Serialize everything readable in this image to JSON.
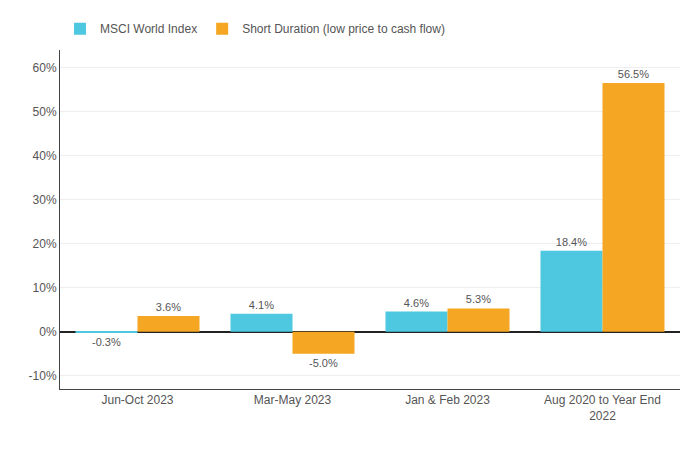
{
  "chart_data": {
    "type": "bar",
    "categories": [
      "Jun-Oct 2023",
      "Mar-May 2023",
      "Jan & Feb 2023",
      "Aug 2020 to Year End\n2022"
    ],
    "series": [
      {
        "name": "MSCI World Index",
        "color": "#4DC8E0",
        "values": [
          -0.3,
          4.1,
          4.6,
          18.4
        ],
        "value_labels": [
          "-0.3%",
          "4.1%",
          "4.6%",
          "18.4%"
        ]
      },
      {
        "name": "Short Duration (low price to cash flow)",
        "color": "#F5A623",
        "values": [
          3.6,
          -5.0,
          5.3,
          56.5
        ],
        "value_labels": [
          "3.6%",
          "-5.0%",
          "5.3%",
          "56.5%"
        ]
      }
    ],
    "ylim": [
      -13,
      64
    ],
    "yticks": [
      {
        "value": -10,
        "label": "-10%"
      },
      {
        "value": 0,
        "label": "0%"
      },
      {
        "value": 10,
        "label": "10%"
      },
      {
        "value": 20,
        "label": "20%"
      },
      {
        "value": 30,
        "label": "30%"
      },
      {
        "value": 40,
        "label": "40%"
      },
      {
        "value": 50,
        "label": "50%"
      },
      {
        "value": 60,
        "label": "60%"
      }
    ],
    "grid": true,
    "legend": "upper left",
    "data_labels": true
  }
}
